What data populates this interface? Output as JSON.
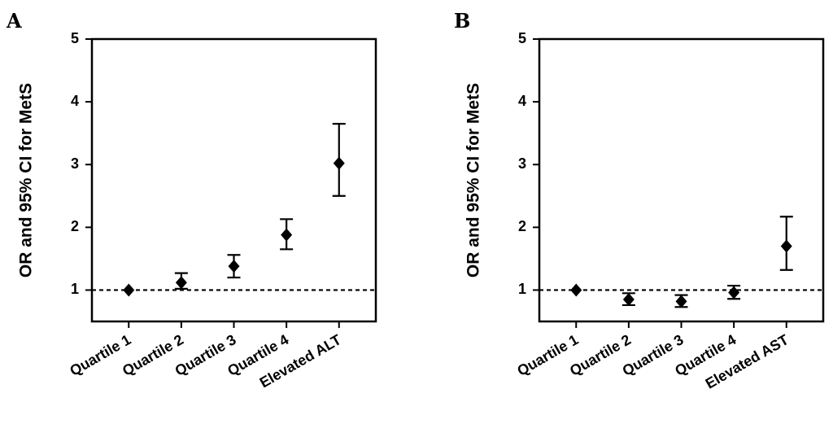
{
  "chart_data": [
    {
      "type": "scatter",
      "panel_label": "A",
      "title": "",
      "xlabel": "",
      "ylabel": "OR and 95% CI for MetS",
      "categories": [
        "Quartile 1",
        "Quartile 2",
        "Quartile 3",
        "Quartile 4",
        "Elevated ALT"
      ],
      "ylim": [
        0.5,
        5
      ],
      "yticks": [
        1,
        2,
        3,
        4,
        5
      ],
      "reference_line": 1,
      "marker": "diamond",
      "grid": false,
      "legend": "none",
      "series": [
        {
          "values": [
            1.0,
            1.12,
            1.38,
            1.88,
            3.02
          ],
          "ci_lower": [
            1.0,
            1.02,
            1.2,
            1.65,
            2.5
          ],
          "ci_upper": [
            1.0,
            1.27,
            1.56,
            2.13,
            3.65
          ]
        }
      ]
    },
    {
      "type": "scatter",
      "panel_label": "B",
      "title": "",
      "xlabel": "",
      "ylabel": "OR and 95% CI for MetS",
      "categories": [
        "Quartile 1",
        "Quartile 2",
        "Quartile 3",
        "Quartile 4",
        "Elevated AST"
      ],
      "ylim": [
        0.5,
        5
      ],
      "yticks": [
        1,
        2,
        3,
        4,
        5
      ],
      "reference_line": 1,
      "marker": "diamond",
      "grid": false,
      "legend": "none",
      "series": [
        {
          "values": [
            1.0,
            0.85,
            0.82,
            0.96,
            1.7
          ],
          "ci_lower": [
            1.0,
            0.76,
            0.73,
            0.86,
            1.32
          ],
          "ci_upper": [
            1.0,
            0.95,
            0.92,
            1.07,
            2.17
          ]
        }
      ]
    }
  ]
}
